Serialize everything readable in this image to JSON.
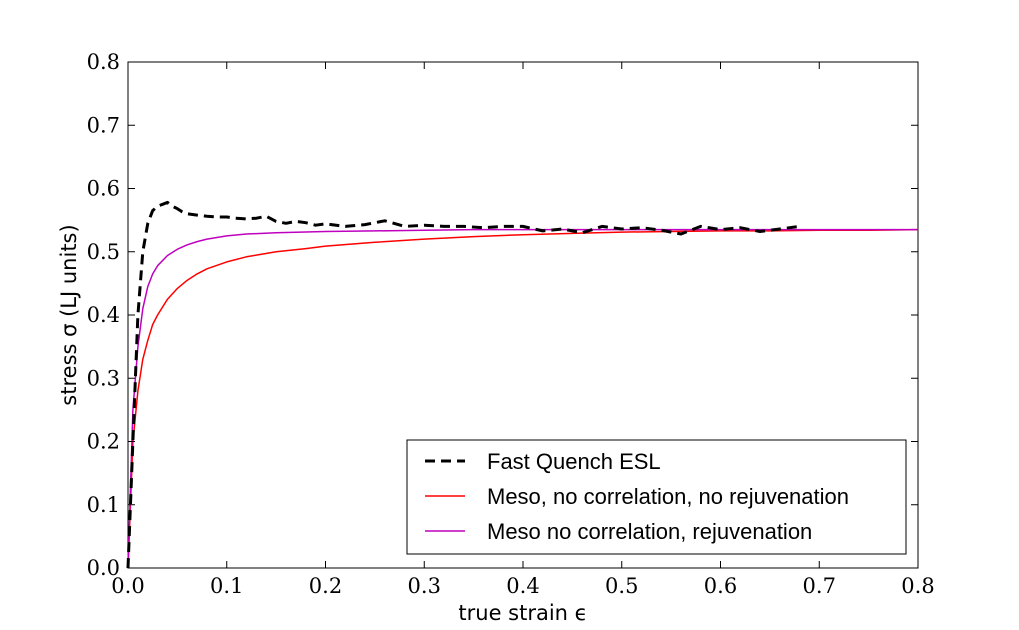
{
  "chart_data": {
    "type": "line",
    "xlabel": "true strain ϵ",
    "ylabel": "stress σ (LJ units)",
    "xlim": [
      0.0,
      0.8
    ],
    "ylim": [
      0.0,
      0.8
    ],
    "xticks": [
      0.0,
      0.1,
      0.2,
      0.3,
      0.4,
      0.5,
      0.6,
      0.7,
      0.8
    ],
    "yticks": [
      0.0,
      0.1,
      0.2,
      0.3,
      0.4,
      0.5,
      0.6,
      0.7,
      0.8
    ],
    "xtick_labels": [
      "0.0",
      "0.1",
      "0.2",
      "0.3",
      "0.4",
      "0.5",
      "0.6",
      "0.7",
      "0.8"
    ],
    "ytick_labels": [
      "0.0",
      "0.1",
      "0.2",
      "0.3",
      "0.4",
      "0.5",
      "0.6",
      "0.7",
      "0.8"
    ],
    "grid": false,
    "legend_position": "lower-right",
    "series": [
      {
        "name": "Fast Quench ESL",
        "color": "#000000",
        "style": "dashed",
        "x": [
          0.0,
          0.005,
          0.01,
          0.015,
          0.02,
          0.025,
          0.03,
          0.035,
          0.04,
          0.045,
          0.05,
          0.055,
          0.06,
          0.07,
          0.08,
          0.09,
          0.1,
          0.11,
          0.12,
          0.13,
          0.14,
          0.15,
          0.16,
          0.17,
          0.18,
          0.19,
          0.2,
          0.22,
          0.24,
          0.26,
          0.28,
          0.3,
          0.32,
          0.34,
          0.36,
          0.38,
          0.4,
          0.42,
          0.44,
          0.46,
          0.48,
          0.5,
          0.52,
          0.54,
          0.56,
          0.58,
          0.6,
          0.62,
          0.64,
          0.66,
          0.68
        ],
        "y": [
          0.0,
          0.2,
          0.4,
          0.5,
          0.545,
          0.565,
          0.572,
          0.575,
          0.578,
          0.572,
          0.568,
          0.563,
          0.56,
          0.558,
          0.556,
          0.555,
          0.555,
          0.553,
          0.552,
          0.553,
          0.556,
          0.548,
          0.545,
          0.548,
          0.546,
          0.542,
          0.544,
          0.54,
          0.543,
          0.549,
          0.54,
          0.542,
          0.54,
          0.54,
          0.538,
          0.54,
          0.54,
          0.533,
          0.536,
          0.53,
          0.54,
          0.536,
          0.538,
          0.534,
          0.528,
          0.54,
          0.535,
          0.538,
          0.532,
          0.536,
          0.54
        ]
      },
      {
        "name": "Meso, no correlation, no rejuvenation",
        "color": "#ff0000",
        "style": "solid",
        "x": [
          0.0,
          0.005,
          0.01,
          0.015,
          0.02,
          0.025,
          0.03,
          0.04,
          0.05,
          0.06,
          0.07,
          0.08,
          0.1,
          0.12,
          0.15,
          0.18,
          0.2,
          0.25,
          0.3,
          0.35,
          0.4,
          0.45,
          0.5,
          0.55,
          0.6,
          0.65,
          0.7,
          0.75,
          0.8
        ],
        "y": [
          0.0,
          0.2,
          0.28,
          0.33,
          0.36,
          0.385,
          0.4,
          0.425,
          0.442,
          0.455,
          0.465,
          0.473,
          0.484,
          0.492,
          0.5,
          0.505,
          0.509,
          0.515,
          0.52,
          0.524,
          0.527,
          0.529,
          0.531,
          0.532,
          0.533,
          0.533,
          0.534,
          0.534,
          0.535
        ]
      },
      {
        "name": "Meso no correlation, rejuvenation",
        "color": "#bf00bf",
        "style": "solid",
        "x": [
          0.0,
          0.005,
          0.01,
          0.015,
          0.02,
          0.025,
          0.03,
          0.04,
          0.05,
          0.06,
          0.07,
          0.08,
          0.1,
          0.12,
          0.15,
          0.2,
          0.25,
          0.3,
          0.35,
          0.4,
          0.45,
          0.5,
          0.55,
          0.6,
          0.65,
          0.7,
          0.75,
          0.8
        ],
        "y": [
          0.0,
          0.25,
          0.35,
          0.41,
          0.445,
          0.465,
          0.478,
          0.494,
          0.504,
          0.511,
          0.516,
          0.52,
          0.525,
          0.528,
          0.53,
          0.532,
          0.533,
          0.534,
          0.535,
          0.535,
          0.535,
          0.535,
          0.535,
          0.535,
          0.535,
          0.535,
          0.535,
          0.535
        ]
      }
    ]
  }
}
